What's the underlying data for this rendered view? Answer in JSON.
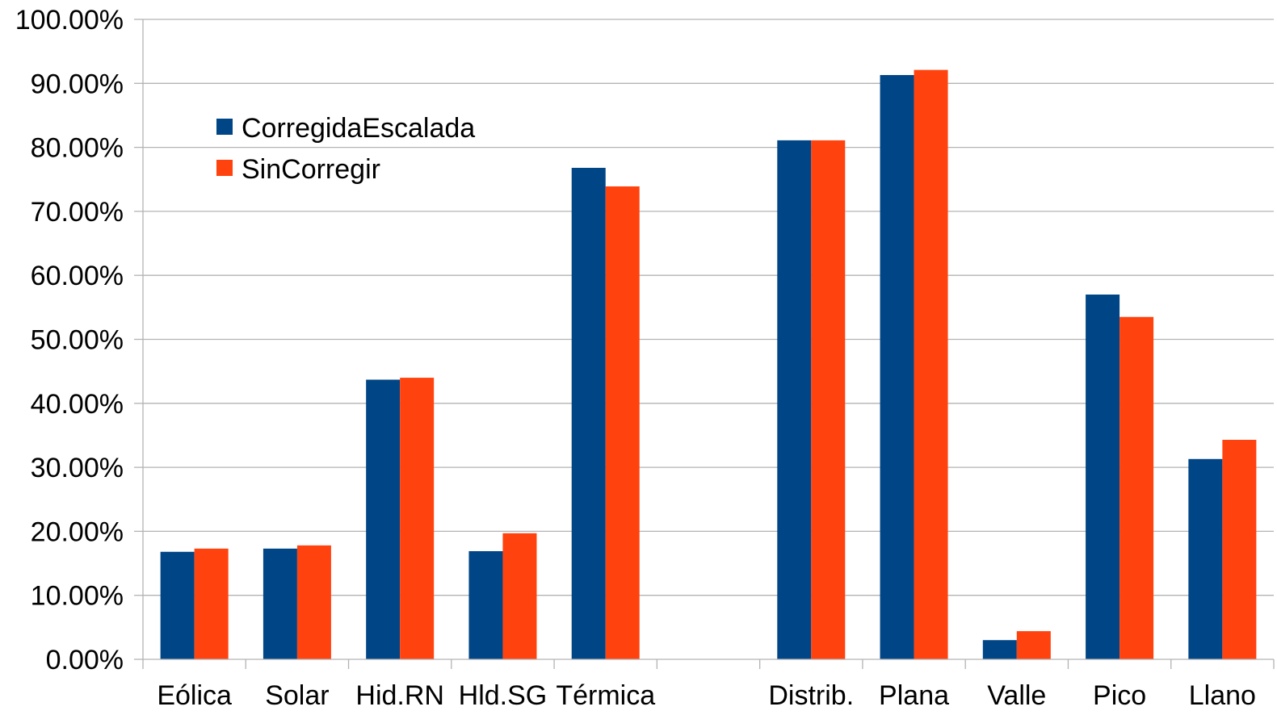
{
  "chart_data": {
    "type": "bar",
    "categories": [
      "Eólica",
      "Solar",
      "Hid.RN",
      "Hld.SG",
      "Térmica",
      "",
      "Distrib.",
      "Plana",
      "Valle",
      "Pico",
      "Llano"
    ],
    "series": [
      {
        "name": "CorregidaEscalada",
        "color": "#004586",
        "values": [
          0.168,
          0.173,
          0.437,
          0.169,
          0.768,
          null,
          0.811,
          0.913,
          0.03,
          0.57,
          0.313
        ]
      },
      {
        "name": "SinCorregir",
        "color": "#ff420e",
        "values": [
          0.173,
          0.178,
          0.44,
          0.197,
          0.739,
          null,
          0.811,
          0.921,
          0.044,
          0.535,
          0.343
        ]
      }
    ],
    "yticks": [
      "0.00%",
      "10.00%",
      "20.00%",
      "30.00%",
      "40.00%",
      "50.00%",
      "60.00%",
      "70.00%",
      "80.00%",
      "90.00%",
      "100.00%"
    ],
    "ylim": [
      0,
      1
    ],
    "grid": true,
    "legend_position": "top-left",
    "title": "",
    "xlabel": "",
    "ylabel": ""
  }
}
